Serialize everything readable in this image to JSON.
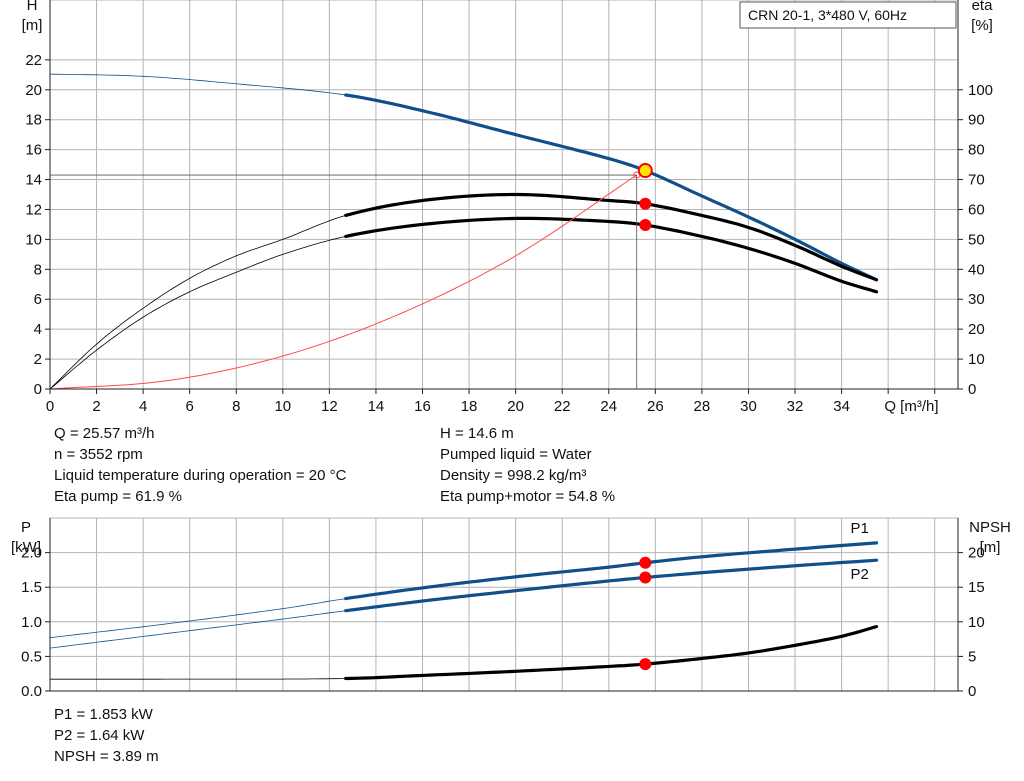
{
  "title_box": "CRN 20-1, 3*480 V, 60Hz",
  "colors": {
    "head_curve": "#114f8a",
    "power_curve": "#114f8a",
    "efficiency_curve": "#000000",
    "npsh_curve": "#000000",
    "system_curve": "#ff4a4a",
    "marker": "#ff0000",
    "duty_marker": "#ffe600",
    "grid": "#b4b4b4"
  },
  "readout_top_left": [
    "Q = 25.57 m³/h",
    "n = 3552 rpm",
    "Liquid temperature during operation = 20 °C",
    "Eta pump = 61.9 %"
  ],
  "readout_top_right": [
    "H = 14.6 m",
    "Pumped liquid = Water",
    "Density = 998.2 kg/m³",
    "Eta pump+motor = 54.8 %"
  ],
  "readout_bottom": [
    "P1 = 1.853 kW",
    "P2 = 1.64 kW",
    "NPSH = 3.89 m"
  ],
  "chart_data": [
    {
      "type": "line",
      "xlabel": "Q [m³/h]",
      "ylabel_left": [
        "H",
        "[m]"
      ],
      "ylabel_right": [
        "eta",
        "[%]"
      ],
      "xlim": [
        0,
        39
      ],
      "ylim_left": [
        0,
        26
      ],
      "ylim_right": [
        0,
        130
      ],
      "xticks": [
        "0",
        "2",
        "4",
        "6",
        "8",
        "10",
        "12",
        "14",
        "16",
        "18",
        "20",
        "22",
        "24",
        "26",
        "28",
        "30",
        "32",
        "34"
      ],
      "yticks_left": [
        "0",
        "2",
        "4",
        "6",
        "8",
        "10",
        "12",
        "14",
        "16",
        "18",
        "20",
        "22"
      ],
      "yticks_right": [
        "0",
        "10",
        "20",
        "30",
        "40",
        "50",
        "60",
        "70",
        "80",
        "90",
        "100"
      ],
      "grid": true,
      "duty_point": {
        "q": 25.57,
        "h": 14.6
      },
      "series": [
        {
          "role": "head",
          "axis": "left",
          "color_key": "head_curve",
          "x": [
            0,
            4,
            8,
            12.7,
            16,
            20,
            24,
            25.57,
            28,
            30,
            32,
            34,
            35.5
          ],
          "y": [
            21.05,
            20.9,
            20.4,
            19.65,
            18.6,
            17.0,
            15.4,
            14.6,
            12.9,
            11.5,
            10.0,
            8.4,
            7.3
          ],
          "solid_from": 12.7
        },
        {
          "role": "eta-pump",
          "axis": "right",
          "color_key": "efficiency_curve",
          "x": [
            0,
            2,
            4,
            6,
            8,
            10,
            12.7,
            16,
            20,
            24,
            25.57,
            28,
            30,
            32,
            34,
            35.5
          ],
          "y": [
            0,
            15,
            27,
            37,
            44.5,
            50,
            58,
            63,
            65,
            63,
            61.9,
            58,
            54,
            48,
            41,
            36.5
          ],
          "solid_from": 12.7
        },
        {
          "role": "eta-pump-motor",
          "axis": "right",
          "color_key": "efficiency_curve",
          "x": [
            0,
            2,
            4,
            6,
            8,
            10,
            12.7,
            16,
            20,
            24,
            25.57,
            28,
            30,
            32,
            34,
            35.5
          ],
          "y": [
            0,
            13,
            24,
            32.5,
            39,
            45,
            51,
            55,
            57,
            56,
            54.8,
            51,
            47,
            42,
            36,
            32.5
          ],
          "solid_from": 12.7
        },
        {
          "role": "system",
          "axis": "left",
          "color_key": "system_curve",
          "x": [
            0,
            5,
            10,
            15,
            20,
            25.2
          ],
          "y": [
            0,
            0.55,
            2.2,
            5.0,
            8.9,
            14.3
          ],
          "solid_from": 99
        }
      ],
      "markers": [
        {
          "x": 25.57,
          "y": 14.6,
          "axis": "left",
          "kind": "duty"
        },
        {
          "x": 25.57,
          "y": 61.9,
          "axis": "right",
          "kind": "point"
        },
        {
          "x": 25.57,
          "y": 54.8,
          "axis": "right",
          "kind": "point"
        }
      ]
    },
    {
      "type": "line",
      "xlim": [
        0,
        39
      ],
      "ylabel_left": [
        "P",
        "[kW]"
      ],
      "ylabel_right": [
        "NPSH",
        "[m]"
      ],
      "ylim_left": [
        0,
        2.5
      ],
      "ylim_right": [
        0,
        25
      ],
      "yticks_left": [
        "0.0",
        "0.5",
        "1.0",
        "1.5",
        "2.0"
      ],
      "yticks_right": [
        "0",
        "5",
        "10",
        "15",
        "20"
      ],
      "grid": true,
      "series": [
        {
          "name": "P1",
          "axis": "left",
          "color_key": "power_curve",
          "x": [
            0,
            5,
            10,
            12.7,
            16,
            20,
            24,
            25.57,
            28,
            32,
            35.5
          ],
          "y": [
            0.77,
            0.97,
            1.19,
            1.335,
            1.49,
            1.65,
            1.79,
            1.853,
            1.94,
            2.05,
            2.14
          ],
          "solid_from": 12.7
        },
        {
          "name": "P2",
          "axis": "left",
          "color_key": "power_curve",
          "x": [
            0,
            5,
            10,
            12.7,
            16,
            20,
            24,
            25.57,
            28,
            32,
            35.5
          ],
          "y": [
            0.62,
            0.83,
            1.04,
            1.16,
            1.3,
            1.45,
            1.59,
            1.64,
            1.71,
            1.81,
            1.89
          ],
          "solid_from": 12.7
        },
        {
          "role": "npsh",
          "axis": "right",
          "color_key": "npsh_curve",
          "x": [
            0,
            6,
            12.7,
            16,
            20,
            24,
            25.57,
            28,
            30,
            32,
            34,
            35.5
          ],
          "y": [
            1.7,
            1.72,
            1.8,
            2.25,
            2.85,
            3.55,
            3.89,
            4.7,
            5.5,
            6.6,
            7.9,
            9.3
          ],
          "solid_from": 12.7
        }
      ],
      "markers": [
        {
          "x": 25.57,
          "y": 1.853,
          "axis": "left",
          "kind": "point"
        },
        {
          "x": 25.57,
          "y": 1.64,
          "axis": "left",
          "kind": "point"
        },
        {
          "x": 25.57,
          "y": 3.89,
          "axis": "right",
          "kind": "point"
        }
      ]
    }
  ]
}
